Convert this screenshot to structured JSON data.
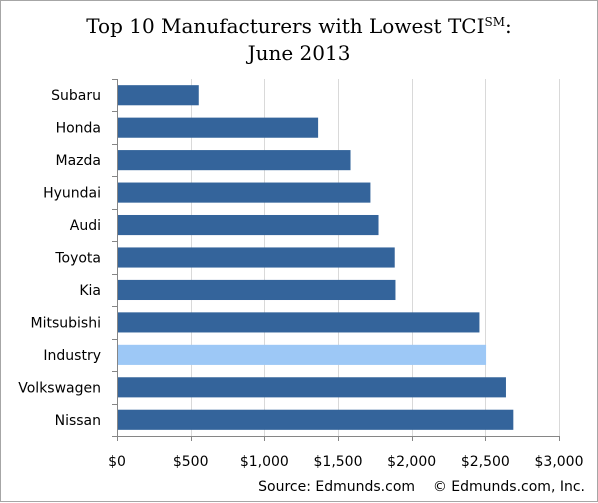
{
  "chart_data": {
    "type": "bar",
    "orientation": "horizontal",
    "title_line1_main": "Top 10 Manufacturers with Lowest TCI",
    "title_line1_sup": "SM",
    "title_line1_end": ":",
    "title_line2": "June 2013",
    "categories": [
      "Subaru",
      "Honda",
      "Mazda",
      "Hyundai",
      "Audi",
      "Toyota",
      "Kia",
      "Mitsubishi",
      "Industry",
      "Volkswagen",
      "Nissan"
    ],
    "values": [
      555,
      1365,
      1585,
      1720,
      1775,
      1885,
      1890,
      2460,
      2505,
      2640,
      2690
    ],
    "highlight_category": "Industry",
    "colors": {
      "bar": "#34649b",
      "highlight": "#9dc8f6",
      "grid": "#d9d9d9",
      "axis": "#868686"
    },
    "xlim": [
      0,
      3000
    ],
    "xticks": [
      0,
      500,
      1000,
      1500,
      2000,
      2500,
      3000
    ],
    "xtick_labels": [
      "$0",
      "$500",
      "$1,000",
      "$1,500",
      "$2,000",
      "$2,500",
      "$3,000"
    ],
    "grid": true,
    "legend": "none"
  },
  "footer": {
    "source": "Source: Edmunds.com",
    "copyright": "© Edmunds.com, Inc."
  }
}
